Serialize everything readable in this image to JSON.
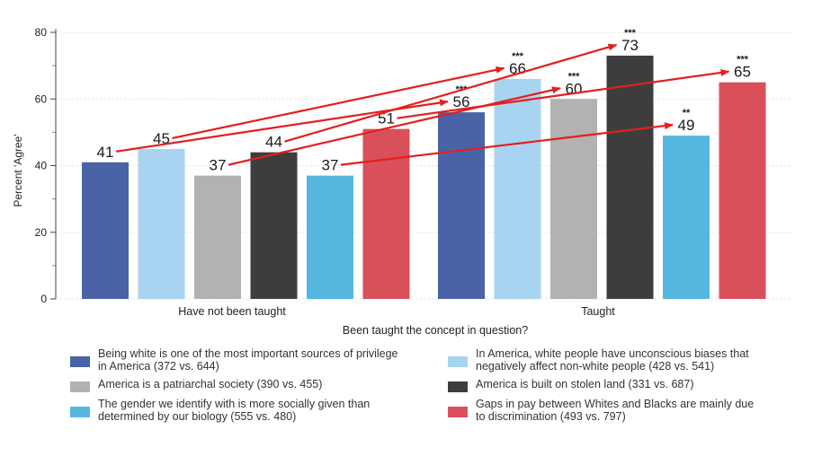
{
  "chart_data": {
    "type": "bar",
    "title": "",
    "xlabel": "Been taught the concept in question?",
    "ylabel": "Percent 'Agree'",
    "ylim": [
      0,
      80
    ],
    "yticks": [
      0,
      20,
      40,
      60,
      80
    ],
    "categories": [
      "Have not been taught",
      "Taught"
    ],
    "series": [
      {
        "name": "Being white is one of the most important sources of privilege in America (372 vs. 644)",
        "color": "#4a63a6",
        "values": [
          41,
          56
        ],
        "labels": [
          "41",
          "56"
        ],
        "sig": [
          "",
          "***"
        ]
      },
      {
        "name": "In America, white people have unconscious biases that negatively affect non-white people (428 vs. 541)",
        "color": "#a9d4f1",
        "values": [
          45,
          66
        ],
        "labels": [
          "45",
          "66"
        ],
        "sig": [
          "",
          "***"
        ]
      },
      {
        "name": "America is a patriarchal society (390 vs. 455)",
        "color": "#b2b2b2",
        "values": [
          37,
          60
        ],
        "labels": [
          "37",
          "60"
        ],
        "sig": [
          "",
          "***"
        ]
      },
      {
        "name": "America is built on stolen land (331 vs. 687)",
        "color": "#3d3d3d",
        "values": [
          44,
          73
        ],
        "labels": [
          "44",
          "73"
        ],
        "sig": [
          "",
          "***"
        ]
      },
      {
        "name": "The gender we identify with is more socially given than determined by our biology (555 vs. 480)",
        "color": "#55b7e0",
        "values": [
          37,
          49
        ],
        "labels": [
          "37",
          "49"
        ],
        "sig": [
          "",
          "**"
        ]
      },
      {
        "name": "Gaps in pay between Whites and Blacks are mainly due to discrimination (493 vs. 797)",
        "color": "#d9505b",
        "values": [
          51,
          65
        ],
        "labels": [
          "51",
          "65"
        ],
        "sig": [
          "",
          "***"
        ]
      }
    ],
    "arrow_color": "#e41e1e",
    "arrows": [
      {
        "from_series": 0,
        "to_series": 0
      },
      {
        "from_series": 1,
        "to_series": 1
      },
      {
        "from_series": 2,
        "to_series": 2
      },
      {
        "from_series": 3,
        "to_series": 3
      },
      {
        "from_series": 4,
        "to_series": 4
      },
      {
        "from_series": 5,
        "to_series": 5
      }
    ]
  },
  "legend": {
    "items": [
      {
        "line1": "Being white is one of the most important sources of privilege",
        "line2": "in America (372 vs. 644)",
        "color": "#4a63a6"
      },
      {
        "line1": "In America, white people have unconscious biases that",
        "line2": "negatively affect non-white people (428 vs. 541)",
        "color": "#a9d4f1"
      },
      {
        "line1": "America is a patriarchal society (390 vs. 455)",
        "line2": "",
        "color": "#b2b2b2"
      },
      {
        "line1": "America is built on stolen land (331 vs. 687)",
        "line2": "",
        "color": "#3d3d3d"
      },
      {
        "line1": "The gender we identify with is more socially given than",
        "line2": "determined by our biology (555 vs. 480)",
        "color": "#55b7e0"
      },
      {
        "line1": "Gaps in pay between Whites and Blacks are mainly due",
        "line2": "to discrimination (493 vs. 797)",
        "color": "#d9505b"
      }
    ]
  }
}
